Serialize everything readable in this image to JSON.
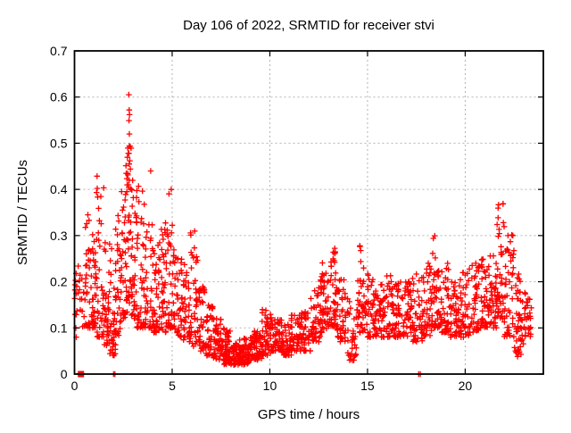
{
  "chart_data": {
    "type": "scatter",
    "title": "Day 106 of 2022, SRMTID for receiver stvi",
    "xlabel": "GPS time / hours",
    "ylabel": "SRMTID / TECUs",
    "xlim": [
      0,
      24
    ],
    "ylim": [
      0,
      0.7
    ],
    "xtick_values": [
      0,
      5,
      10,
      15,
      20
    ],
    "xtick_labels": [
      "0",
      "5",
      "10",
      "15",
      "20"
    ],
    "ytick_values": [
      0,
      0.1,
      0.2,
      0.3,
      0.4,
      0.5,
      0.6,
      0.7
    ],
    "ytick_labels": [
      "0",
      "0.1",
      "0.2",
      "0.3",
      "0.4",
      "0.5",
      "0.6",
      "0.7"
    ],
    "grid": true,
    "legend": "none",
    "marker": {
      "shape": "plus",
      "color": "#ff0000",
      "size": 6.5
    },
    "grid_color": "#b3b3b3",
    "border_color": "#000000",
    "background_color": "#ffffff",
    "seed": 1234567,
    "density_bins": [
      [
        0.0,
        0.2,
        0.08,
        0.33,
        12,
        0.9
      ],
      [
        0.2,
        0.5,
        0.1,
        0.24,
        12,
        1.4
      ],
      [
        0.5,
        0.8,
        0.1,
        0.38,
        30,
        2.0
      ],
      [
        0.8,
        1.1,
        0.1,
        0.4,
        36,
        2.0
      ],
      [
        1.1,
        1.5,
        0.08,
        0.43,
        40,
        2.2
      ],
      [
        1.5,
        1.8,
        0.06,
        0.3,
        34,
        1.8
      ],
      [
        1.8,
        2.1,
        0.04,
        0.28,
        30,
        1.7
      ],
      [
        2.1,
        2.4,
        0.08,
        0.35,
        36,
        1.8
      ],
      [
        2.4,
        2.7,
        0.12,
        0.46,
        40,
        1.8
      ],
      [
        2.7,
        2.9,
        0.15,
        0.5,
        28,
        1.4
      ],
      [
        2.9,
        3.2,
        0.12,
        0.42,
        40,
        1.7
      ],
      [
        3.2,
        3.6,
        0.1,
        0.41,
        40,
        2.0
      ],
      [
        3.6,
        4.0,
        0.1,
        0.34,
        36,
        2.0
      ],
      [
        4.0,
        4.4,
        0.09,
        0.3,
        40,
        1.8
      ],
      [
        4.4,
        4.8,
        0.09,
        0.33,
        40,
        1.8
      ],
      [
        4.8,
        5.1,
        0.1,
        0.4,
        34,
        2.0
      ],
      [
        5.1,
        5.5,
        0.08,
        0.27,
        38,
        1.8
      ],
      [
        5.5,
        5.9,
        0.07,
        0.25,
        36,
        1.8
      ],
      [
        5.9,
        6.3,
        0.06,
        0.31,
        38,
        2.0
      ],
      [
        6.3,
        6.7,
        0.05,
        0.2,
        36,
        1.7
      ],
      [
        6.7,
        7.1,
        0.04,
        0.15,
        38,
        1.6
      ],
      [
        7.1,
        7.5,
        0.03,
        0.12,
        44,
        1.5
      ],
      [
        7.5,
        8.0,
        0.02,
        0.1,
        52,
        1.4
      ],
      [
        8.0,
        8.6,
        0.02,
        0.08,
        62,
        1.3
      ],
      [
        8.6,
        9.2,
        0.02,
        0.08,
        62,
        1.2
      ],
      [
        9.2,
        9.6,
        0.03,
        0.1,
        46,
        1.3
      ],
      [
        9.6,
        10.1,
        0.04,
        0.14,
        48,
        1.5
      ],
      [
        10.1,
        10.6,
        0.05,
        0.12,
        48,
        1.4
      ],
      [
        10.6,
        11.1,
        0.04,
        0.11,
        46,
        1.4
      ],
      [
        11.1,
        11.6,
        0.05,
        0.13,
        42,
        1.5
      ],
      [
        11.6,
        12.1,
        0.05,
        0.14,
        42,
        1.5
      ],
      [
        12.1,
        12.6,
        0.07,
        0.19,
        42,
        1.7
      ],
      [
        12.6,
        13.0,
        0.09,
        0.25,
        44,
        1.6
      ],
      [
        13.0,
        13.45,
        0.1,
        0.28,
        46,
        1.5
      ],
      [
        13.45,
        13.9,
        0.07,
        0.21,
        40,
        1.7
      ],
      [
        13.9,
        14.45,
        0.03,
        0.17,
        34,
        1.6
      ],
      [
        14.45,
        14.8,
        0.09,
        0.3,
        36,
        1.9
      ],
      [
        14.8,
        15.3,
        0.08,
        0.22,
        40,
        1.7
      ],
      [
        15.3,
        15.8,
        0.08,
        0.2,
        42,
        1.6
      ],
      [
        15.8,
        16.3,
        0.08,
        0.22,
        44,
        1.6
      ],
      [
        16.3,
        16.8,
        0.08,
        0.2,
        46,
        1.5
      ],
      [
        16.8,
        17.3,
        0.08,
        0.2,
        44,
        1.5
      ],
      [
        17.3,
        17.8,
        0.07,
        0.24,
        42,
        1.7
      ],
      [
        17.8,
        18.3,
        0.08,
        0.24,
        42,
        1.6
      ],
      [
        18.3,
        18.7,
        0.1,
        0.3,
        40,
        1.8
      ],
      [
        18.7,
        19.2,
        0.09,
        0.24,
        42,
        1.6
      ],
      [
        19.2,
        19.7,
        0.08,
        0.2,
        42,
        1.5
      ],
      [
        19.7,
        20.2,
        0.08,
        0.22,
        42,
        1.6
      ],
      [
        20.2,
        20.7,
        0.09,
        0.24,
        42,
        1.6
      ],
      [
        20.7,
        21.2,
        0.1,
        0.28,
        42,
        1.7
      ],
      [
        21.2,
        21.6,
        0.1,
        0.26,
        40,
        1.6
      ],
      [
        21.6,
        22.0,
        0.12,
        0.4,
        44,
        1.9
      ],
      [
        22.0,
        22.5,
        0.08,
        0.31,
        46,
        1.7
      ],
      [
        22.5,
        23.0,
        0.04,
        0.22,
        44,
        1.5
      ],
      [
        23.0,
        23.4,
        0.08,
        0.2,
        30,
        1.4
      ]
    ],
    "outlier_points": [
      [
        0.3,
        0.0
      ],
      [
        0.33,
        0.0
      ],
      [
        0.36,
        0.0
      ],
      [
        2.0,
        0.0
      ],
      [
        2.07,
        0.0
      ],
      [
        17.62,
        0.0
      ],
      [
        17.7,
        0.0
      ],
      [
        2.78,
        0.605
      ],
      [
        2.8,
        0.572
      ],
      [
        2.82,
        0.562
      ],
      [
        2.79,
        0.549
      ],
      [
        2.81,
        0.52
      ],
      [
        2.78,
        0.478
      ],
      [
        2.83,
        0.462
      ],
      [
        2.8,
        0.455
      ],
      [
        2.8,
        0.42
      ],
      [
        3.9,
        0.44
      ],
      [
        0.07,
        0.1
      ],
      [
        0.09,
        0.08
      ],
      [
        22.62,
        0.047
      ],
      [
        22.68,
        0.038
      ],
      [
        22.74,
        0.052
      ]
    ],
    "zero_cluster_square": {
      "x": 0.33,
      "y": 0.0
    }
  }
}
